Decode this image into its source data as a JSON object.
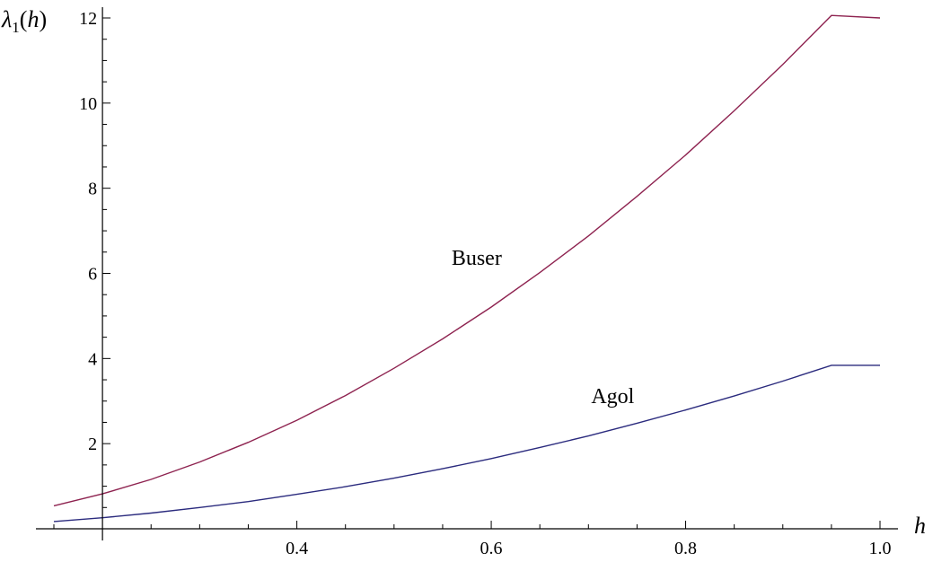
{
  "chart_data": {
    "type": "line",
    "xlabel": "h",
    "ylabel": {
      "base": "λ",
      "sub": "1",
      "rest": "(h)"
    },
    "xlim": [
      0.15,
      1.0
    ],
    "ylim": [
      0,
      12
    ],
    "axes_origin": {
      "x": 0.2,
      "y": 0
    },
    "x_ticks": [
      {
        "value": 0.4,
        "label": "0.4"
      },
      {
        "value": 0.6,
        "label": "0.6"
      },
      {
        "value": 0.8,
        "label": "0.8"
      },
      {
        "value": 1.0,
        "label": "1.0"
      }
    ],
    "x_minor_step": 0.05,
    "y_ticks": [
      {
        "value": 2,
        "label": "2"
      },
      {
        "value": 4,
        "label": "4"
      },
      {
        "value": 6,
        "label": "6"
      },
      {
        "value": 8,
        "label": "8"
      },
      {
        "value": 10,
        "label": "10"
      },
      {
        "value": 12,
        "label": "12"
      }
    ],
    "y_minor_step": 0.5,
    "grid": false,
    "series": [
      {
        "name": "Buser",
        "color": "#8e2350",
        "x": [
          0.15,
          0.2,
          0.25,
          0.3,
          0.35,
          0.4,
          0.45,
          0.5,
          0.55,
          0.6,
          0.65,
          0.7,
          0.75,
          0.8,
          0.85,
          0.9,
          0.95,
          1.0
        ],
        "y": [
          0.54,
          0.82,
          1.16,
          1.57,
          2.03,
          2.55,
          3.13,
          3.77,
          4.46,
          5.21,
          6.02,
          6.88,
          7.81,
          8.78,
          9.82,
          10.91,
          12.06,
          12.0
        ]
      },
      {
        "name": "Agol",
        "color": "#2b2b7e",
        "x": [
          0.15,
          0.2,
          0.25,
          0.3,
          0.35,
          0.4,
          0.45,
          0.5,
          0.55,
          0.6,
          0.65,
          0.7,
          0.75,
          0.8,
          0.85,
          0.9,
          0.95,
          1.0
        ],
        "y": [
          0.17,
          0.26,
          0.37,
          0.5,
          0.64,
          0.81,
          0.99,
          1.19,
          1.41,
          1.65,
          1.91,
          2.18,
          2.48,
          2.79,
          3.12,
          3.47,
          3.84,
          3.84
        ]
      }
    ],
    "annotations": [
      {
        "text": "Buser",
        "x": 0.585,
        "y": 6.2
      },
      {
        "text": "Agol",
        "x": 0.725,
        "y": 2.95
      }
    ]
  }
}
